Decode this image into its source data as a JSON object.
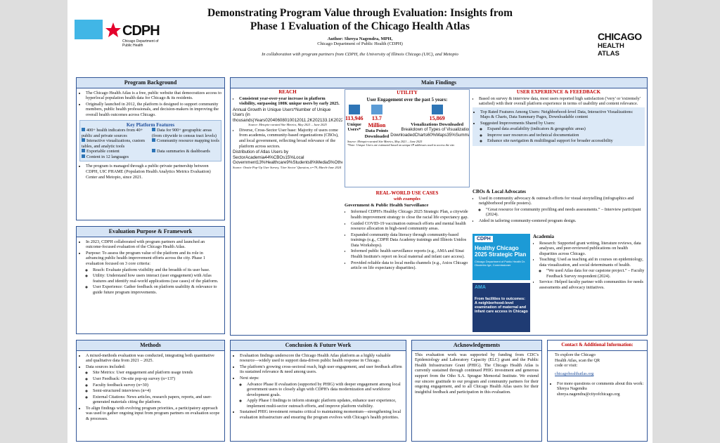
{
  "header": {
    "title": "Demonstrating Program Value through Evaluation: Insights from Phase 1 Evaluation of the Chicago Health Atlas",
    "author": "Author: Shreya Nagendra, MPH,",
    "affiliation": "Chicago Department of Public Health (CDPH)",
    "collaboration": "In collaboration with program partners from CDPH, the University of Illinois Chicago (UIC), and Metopio",
    "cdph_logo": "CDPH",
    "cdph_logo_sub": "Chicago Department of Public Health",
    "atlas_logo_1": "CHICAGO",
    "atlas_logo_2": "HEALTH ATLAS"
  },
  "program_background": {
    "title": "Program Background",
    "intro": [
      "The Chicago Health Atlas is a free, public website that democratizes access to hyperlocal population health data for Chicago & its residents.",
      "Originally launched in 2012, the platform is designed to support community members, public health professionals, and decision-makers in improving the overall health outcomes across Chicago."
    ],
    "features_title": "Key Platform Features",
    "features": [
      "400+ health indicators from 40+ public and private sources",
      "Data for 900+ geographic areas (from citywide to census tract levels)",
      "Interactive visualizations, custom tables, and analytic tools",
      "Community resource mapping tools",
      "Exportable content",
      "Data summaries & dashboards",
      "Content in 12 languages"
    ],
    "outro": [
      "The program is managed through a public-private partnership between CDPH, UIC PHAME (Population Health Analytics Metrics Evaluation) Center and Metopio, since 2021."
    ]
  },
  "evaluation": {
    "title": "Evaluation Purpose & Framework",
    "items": [
      "In 2023, CDPH collaborated with program partners and launched an outcome-focused evaluation of the Chicago Health Atlas.",
      {
        "text": "Purpose: To assess the program value of the platform and its role in advancing public health improvement efforts across the city. Phase 1 evaluation focused on 3 core criteria:",
        "sub": [
          "Reach: Evaluate platform visibility and the breadth of its user base.",
          "Utility: Understand how users interact (user engagement) with Atlas features and identify real-world applications (use cases) of the platform.",
          "User Experience: Gather feedback on platform usability & relevance to guide future program improvements."
        ]
      }
    ]
  },
  "methods": {
    "title": "Methods",
    "items": [
      "A mixed-methods evaluation was conducted, integrating both quantitative and qualitative data from 2021 – 2025.",
      {
        "text": "Data sources included:",
        "sub": [
          "Site Metrics: User engagement and platform usage trends",
          "User Feedback: On-site pop-up survey (n=137)",
          "Faculty feedback survey (n=30)",
          "Semi-structured interviews (n=4)",
          "External Citations: News articles, research papers, reports, and user-generated materials citing the platform."
        ]
      },
      "To align findings with evolving program priorities, a participatory approach was used to gather ongoing input from program partners on evaluation scope & processes."
    ]
  },
  "main_findings": {
    "title": "Main Findings",
    "reach": {
      "title": "REACH",
      "bullet_1": "Consistent year-over-year increase in platform visibility, surpassing 100K unique users by early 2025.",
      "source_1": "Source: Metopio-curated Site Metrics, May 2021 – June 2025",
      "bullet_2": "Diverse, Cross-Sector User base: Majority of users come from academia, community-based organizations (CBOs), and local government, reflecting broad relevance of the platform across sectors.",
      "source_2": "Source: Onsite Pop-Up User Survey, 'User Sector' Question, n=79, March-June 2024"
    },
    "utility": {
      "title": "UTILITY",
      "heading": "User Engagement over the past 5 years:",
      "stats": [
        {
          "value": "113,946",
          "label": "Unique Users*"
        },
        {
          "value": "13.7 Million",
          "label": "Data Points Downloaded"
        },
        {
          "value": "15,869",
          "label": "Visualizations Downloaded"
        }
      ],
      "source": "Source: Metopio-curated Site Metrics, May 2021 – June 2025",
      "note": "*Note: Unique Users are estimated based on unique IP addresses used to access the site."
    },
    "use_cases": {
      "title": "REAL-WORLD USE CASES",
      "subtitle": "with examples",
      "heading": "Government & Public Health Surveillance",
      "items": [
        "Informed CDPH's Healthy Chicago 2025 Strategic Plan, a citywide health improvement strategy to close the racial life expectancy gap.",
        "Guided COVID-19 vaccination outreach efforts and mental health resource allocation in high-need community areas.",
        "Expanded community data literacy through community-based trainings (e.g., CDPH Data Academy trainings and Illinois Unidos Data Workshops).",
        "Informed public health surveillance reports (e.g., AMA and Sinai Health Institute's report on local maternal and infant care access).",
        "Provided reliable data to local media channels (e.g., Axios Chicago article on life expectancy disparities)."
      ]
    },
    "ux": {
      "title": "USER EXPERIENCE & FEEEDBACK",
      "items": [
        "Based on survey & interview data, most users reported high satisfaction ('very' or 'extremely' satisfied) with their overall platform experience in terms of usability and content relevance."
      ],
      "highlights": [
        "Top Rated Features Among Users: Neighborhood-level Data, Interactive Visualizations: Maps & Charts, Data Summary Pages, Downloadable content",
        {
          "text": "Suggested Improvements Shared by Users:",
          "sub": [
            "Expand data availability (indicators & geographic areas)",
            "Improve user resources and technical documentation",
            "Enhance site navigation & multilingual support for broader accessibility"
          ]
        }
      ]
    },
    "cbos": {
      "title": "CBOs & Local Advocates",
      "items": [
        {
          "text": "Used in community advocacy & outreach efforts for visual storytelling (infographics and neighborhood profile posters).",
          "sub": [
            "“Great resource for community profiling and needs assessments.” – Interview participant (2024)."
          ]
        },
        "Aided in tailoring community-centered program design."
      ]
    },
    "academia": {
      "title": "Academia",
      "items": [
        "Research: Supported grant writing, literature reviews, data analyses, and peer-reviewed publications on health disparities across Chicago.",
        {
          "text": "Teaching: Used as teaching aid in courses on epidemiology, data visualization, and social determinants of health.",
          "sub": [
            "“We used Atlas data for our capstone project.” – Faculty Feedback Survey respondent (2024)."
          ]
        },
        "Service: Helped faculty partner with communities for needs assessments and advocacy initiatives."
      ]
    },
    "cover_1": {
      "logo": "CDPH",
      "title": "Healthy Chicago 2025 Strategic Plan",
      "sub": "Chicago Department of Public Health Dr. Olusimbo Ige, Commissioner"
    },
    "cover_2": {
      "logo": "AMA",
      "title": "From facilities to outcomes: A neighborhood-level examination of maternal and infant care access in Chicago"
    }
  },
  "conclusion": {
    "title": "Conclusion & Future Work",
    "items": [
      "Evaluation findings underscore the Chicago Health Atlas platform as a highly valuable resource—widely used to support data-driven public health response in Chicago.",
      "The platform's growing cross-sectoral reach, high user engagement, and user feedback affirm its sustained relevance & need among users.",
      {
        "text": "Next steps:",
        "sub": [
          "Advance Phase II evaluation (supported by PHIG) with deeper engagement among local government users to closely align with CDPH's data modernization and workforce development goals.",
          "Apply Phase I findings to inform strategic platform updates, enhance user experience, implement multi-sector outreach efforts, and improve platform visibility."
        ]
      },
      "Sustained PHIG investment remains critical to maintaining momentum—strengthening local evaluation infrastructure and ensuring the program evolves with Chicago's health priorities."
    ]
  },
  "acknowledgements": {
    "title": "Acknowledgements",
    "text": "This evaluation work was supported by funding from CDC's Epidemiology and Laboratory Capacity (ELC) grant and the Public Health Infrastructure Grant (PHIG). The Chicago Health Atlas is currently sustained through continued PHIG investment and generous support from the Otho S.A. Sprague Memorial Institute. We extend our sincere gratitude to our program and community partners for their ongoing engagement, and to all Chicago Health Atlas users for their insightful feedback and participation in this evaluation."
  },
  "contact": {
    "title": "Contact & Additional Information:",
    "explore": "To explore the Chicago Health Atlas, scan the QR code or visit:",
    "url": "chicagohealthatlas.org",
    "questions": "For more questions or comments about this work:",
    "name": "Shreya Nagendra",
    "email": "shreya.nagendra@cityofchicago.org"
  },
  "chart_data": [
    {
      "type": "line",
      "title": "Annual Growth in Unique Users*",
      "xlabel": "Years",
      "ylabel": "Number of Unique Users (in thousands)",
      "categories": [
        "2021",
        "2022",
        "2023",
        "2024",
        "2025"
      ],
      "values": [
        11.2,
        33.1,
        69,
        96.2,
        113.9
      ],
      "value_labels": [
        "11.2K",
        "33.1K",
        "69K",
        "96.2K",
        "113.9K"
      ],
      "color": "#4a6fa5",
      "ylim": [
        0,
        120
      ],
      "yticks": [
        0,
        20,
        40,
        60,
        80,
        100,
        120
      ],
      "grid": true
    },
    {
      "type": "pie",
      "title": "Distribution of Atlas Users by Sector",
      "categories": [
        "Academia",
        "CBOs",
        "Local Government",
        "Healthcare",
        "Students",
        "Media",
        "Other"
      ],
      "values": [
        44,
        15,
        13,
        9,
        8,
        5,
        6
      ],
      "value_labels": [
        "44%",
        "15%",
        "13%",
        "9%",
        "8%",
        "5%",
        "6%"
      ],
      "colors": [
        "#b5532a",
        "#d9825b",
        "#e9a98a",
        "#f2c9b5",
        "#c97a6a",
        "#e4b0a0",
        "#f6ddd2"
      ]
    },
    {
      "type": "hbar",
      "title": "Breakdown of Types of Visualizations Downloaded",
      "categories": [
        "Charts",
        "Maps",
        "Summaries"
      ],
      "values": [
        60,
        35,
        5
      ],
      "value_labels": [
        "60%",
        "35%",
        "5%"
      ],
      "color": "#a4508b",
      "xlim": [
        0,
        100
      ]
    }
  ]
}
